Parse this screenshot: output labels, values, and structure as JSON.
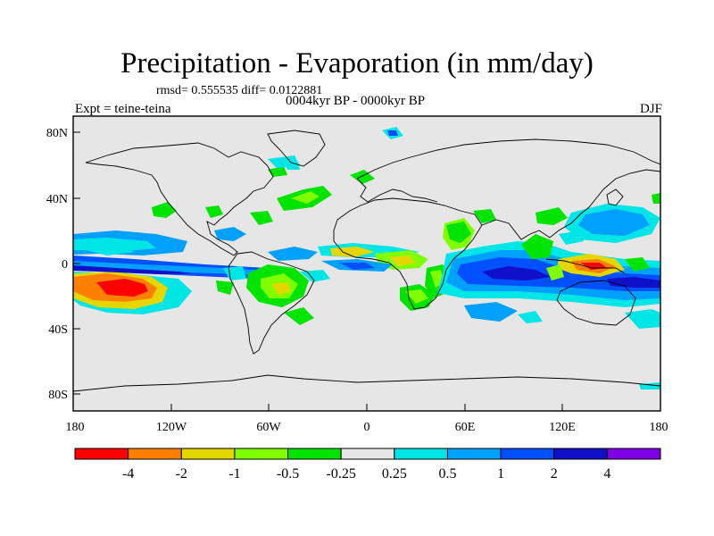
{
  "title": "Precipitation - Evaporation (in mm/day)",
  "stats_text": "rmsd= 0.555535 diff= 0.0122881",
  "subtitle": "0004kyr BP - 0000kyr BP",
  "expt_label": "Expt = teine-teina",
  "season": "DJF",
  "map": {
    "lat_ticks": [
      "80N",
      "40N",
      "0",
      "40S",
      "80S"
    ],
    "lon_ticks": [
      "180",
      "120W",
      "60W",
      "0",
      "60E",
      "120E",
      "180"
    ]
  },
  "colorbar": {
    "colors": [
      "#ff0000",
      "#ff8000",
      "#e6d600",
      "#80ff00",
      "#00e400",
      "#e6e6e6",
      "#00e6e6",
      "#00a0ff",
      "#0050ff",
      "#1010c8",
      "#8000e6"
    ],
    "labels": [
      "-4",
      "-2",
      "-1",
      "-0.5",
      "-0.25",
      "0.25",
      "0.5",
      "1",
      "2",
      "4"
    ]
  },
  "palette": {
    "background": "#e6e6e6",
    "neg5": "#ff0000",
    "neg4": "#ff8000",
    "neg3": "#e6d600",
    "neg2": "#80ff00",
    "neg1": "#00e400",
    "pos1": "#00e6e6",
    "pos2": "#00a0ff",
    "pos3": "#0050ff",
    "pos4": "#1010c8",
    "pos5": "#8000e6"
  }
}
